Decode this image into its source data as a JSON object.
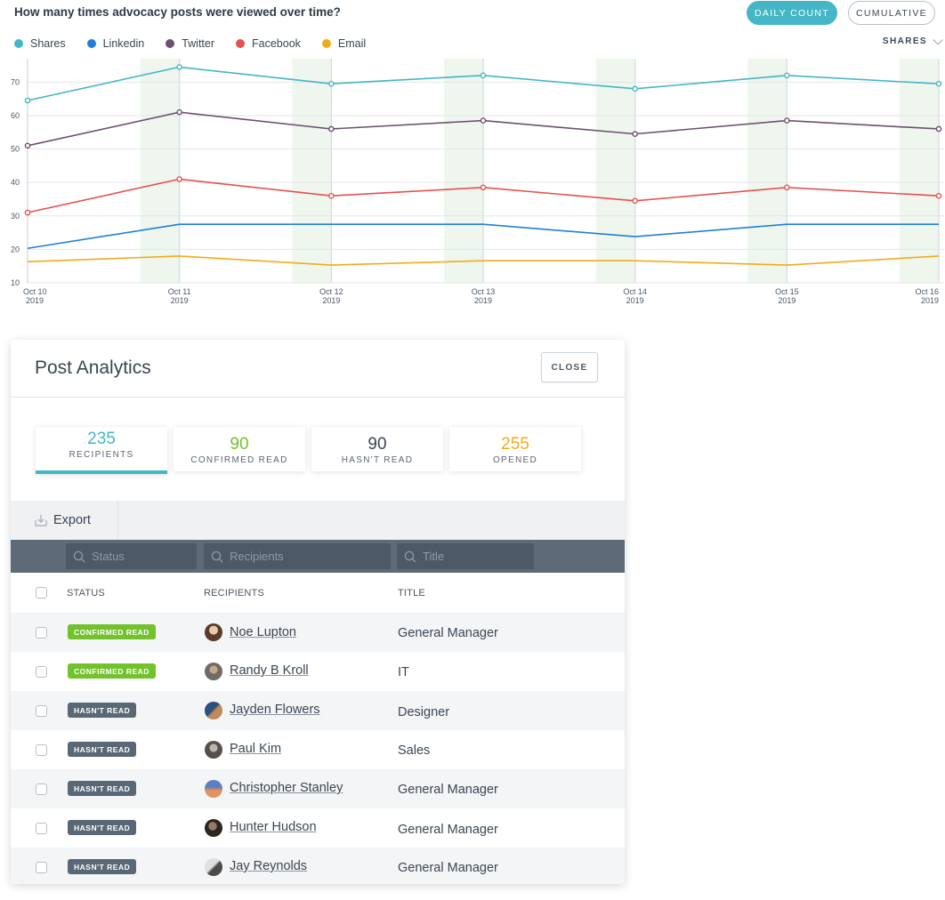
{
  "chart": {
    "title": "How many times advocacy posts were viewed over time?",
    "buttons": {
      "daily": "DAILY COUNT",
      "cumulative": "CUMULATIVE"
    },
    "metric_select": "SHARES",
    "legend": [
      {
        "label": "Shares",
        "color": "#44b6c5"
      },
      {
        "label": "Linkedin",
        "color": "#1f7fd8"
      },
      {
        "label": "Twitter",
        "color": "#6f4f72"
      },
      {
        "label": "Facebook",
        "color": "#e5514f"
      },
      {
        "label": "Email",
        "color": "#f0ad1b"
      }
    ]
  },
  "chart_data": {
    "type": "line",
    "title": "How many times advocacy posts were viewed over time?",
    "xlabel": "",
    "ylabel": "",
    "categories": [
      "Oct 10 2019",
      "Oct 11 2019",
      "Oct 12 2019",
      "Oct 13 2019",
      "Oct 14 2019",
      "Oct 15 2019",
      "Oct 16 2019"
    ],
    "tick_labels": [
      [
        "Oct 10",
        "2019"
      ],
      [
        "Oct 11",
        "2019"
      ],
      [
        "Oct 12",
        "2019"
      ],
      [
        "Oct 13",
        "2019"
      ],
      [
        "Oct 14",
        "2019"
      ],
      [
        "Oct 15",
        "2019"
      ],
      [
        "Oct 16",
        "2019"
      ]
    ],
    "yticks": [
      10,
      20,
      30,
      40,
      50,
      60,
      70
    ],
    "ylim": [
      10,
      77
    ],
    "grid": true,
    "legend_position": "top-left",
    "series": [
      {
        "name": "Shares",
        "color": "#44b6c5",
        "values": [
          64.5,
          74.5,
          69.5,
          72,
          68,
          72,
          69.5
        ],
        "markers": true
      },
      {
        "name": "Twitter",
        "color": "#6f4f72",
        "values": [
          51,
          61,
          56,
          58.5,
          54.5,
          58.5,
          56
        ],
        "markers": true
      },
      {
        "name": "Facebook",
        "color": "#e5514f",
        "values": [
          31,
          41,
          36,
          38.5,
          34.5,
          38.5,
          36
        ],
        "markers": true
      },
      {
        "name": "Linkedin",
        "color": "#1f7fd8",
        "values": [
          20.3,
          27.5,
          27.5,
          27.5,
          23.8,
          27.5,
          27.5
        ],
        "markers": false
      },
      {
        "name": "Email",
        "color": "#f0ad1b",
        "values": [
          16.3,
          18,
          15.3,
          16.6,
          16.6,
          15.3,
          18
        ],
        "markers": false
      }
    ]
  },
  "panel": {
    "title": "Post Analytics",
    "close_label": "CLOSE",
    "stats": [
      {
        "value": "235",
        "label": "RECIPIENTS",
        "color": "#44b6c5"
      },
      {
        "value": "90",
        "label": "CONFIRMED READ",
        "color": "#72c22c"
      },
      {
        "value": "90",
        "label": "HASN'T READ",
        "color": "#3a4652"
      },
      {
        "value": "255",
        "label": "OPENED",
        "color": "#f0ad1b"
      }
    ],
    "export_label": "Export",
    "filters": [
      {
        "placeholder": "Status"
      },
      {
        "placeholder": "Recipients"
      },
      {
        "placeholder": "Title"
      }
    ],
    "columns": {
      "status": "STATUS",
      "recipients": "RECIPIENTS",
      "title": "TITLE"
    },
    "rows": [
      {
        "status": "CONFIRMED READ",
        "name": "Noe Lupton",
        "title": "General Manager"
      },
      {
        "status": "CONFIRMED READ",
        "name": "Randy B Kroll",
        "title": "IT"
      },
      {
        "status": "HASN'T READ",
        "name": "Jayden Flowers",
        "title": "Designer"
      },
      {
        "status": "HASN'T READ",
        "name": "Paul Kim",
        "title": "Sales"
      },
      {
        "status": "HASN'T READ",
        "name": "Christopher Stanley",
        "title": "General Manager"
      },
      {
        "status": "HASN'T READ",
        "name": "Hunter Hudson",
        "title": "General Manager"
      },
      {
        "status": "HASN'T READ",
        "name": "Jay Reynolds",
        "title": "General Manager"
      }
    ]
  }
}
